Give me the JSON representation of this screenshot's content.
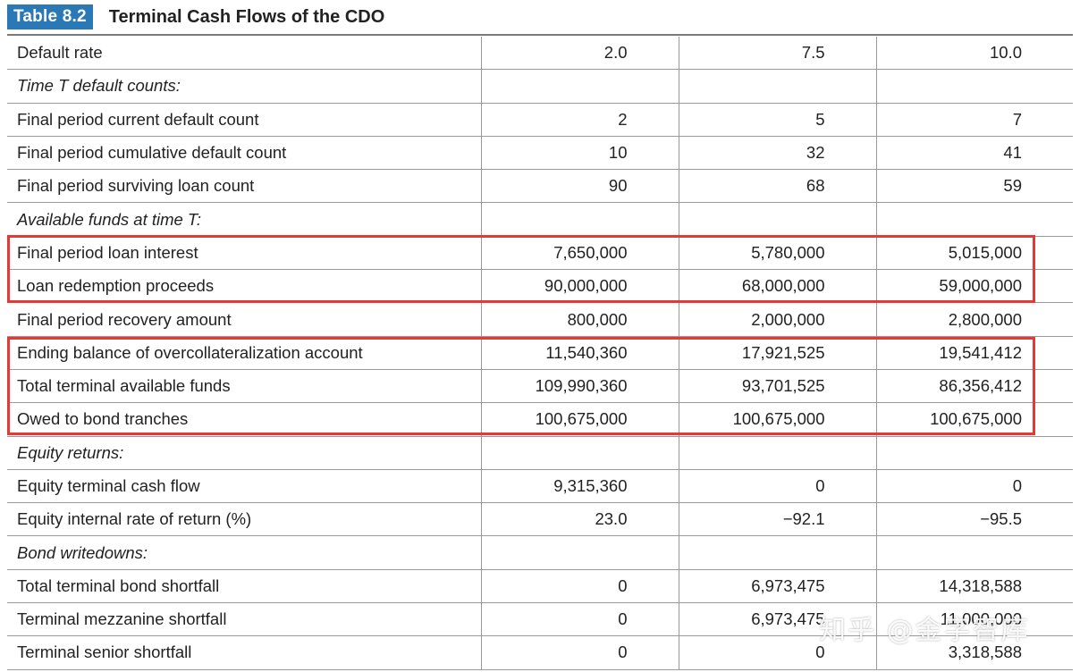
{
  "header": {
    "tag": "Table 8.2",
    "title": "Terminal Cash Flows of the CDO"
  },
  "rows": [
    {
      "label": "Default rate",
      "section": false,
      "values": [
        "2.0",
        "7.5",
        "10.0"
      ]
    },
    {
      "label": "Time T default counts:",
      "section": true,
      "values": [
        "",
        "",
        ""
      ]
    },
    {
      "label": "Final period current default count",
      "section": false,
      "values": [
        "2",
        "5",
        "7"
      ]
    },
    {
      "label": "Final period cumulative default count",
      "section": false,
      "values": [
        "10",
        "32",
        "41"
      ]
    },
    {
      "label": "Final period surviving loan count",
      "section": false,
      "values": [
        "90",
        "68",
        "59"
      ]
    },
    {
      "label": "Available funds at time T:",
      "section": true,
      "values": [
        "",
        "",
        ""
      ]
    },
    {
      "label": "Final period loan interest",
      "section": false,
      "values": [
        "7,650,000",
        "5,780,000",
        "5,015,000"
      ]
    },
    {
      "label": "Loan redemption proceeds",
      "section": false,
      "values": [
        "90,000,000",
        "68,000,000",
        "59,000,000"
      ]
    },
    {
      "label": "Final period recovery amount",
      "section": false,
      "values": [
        "800,000",
        "2,000,000",
        "2,800,000"
      ]
    },
    {
      "label": "Ending balance of overcollateralization account",
      "section": false,
      "values": [
        "11,540,360",
        "17,921,525",
        "19,541,412"
      ]
    },
    {
      "label": "Total terminal available funds",
      "section": false,
      "values": [
        "109,990,360",
        "93,701,525",
        "86,356,412"
      ]
    },
    {
      "label": "Owed to bond tranches",
      "section": false,
      "values": [
        "100,675,000",
        "100,675,000",
        "100,675,000"
      ]
    },
    {
      "label": "Equity returns:",
      "section": true,
      "values": [
        "",
        "",
        ""
      ]
    },
    {
      "label": "Equity terminal cash flow",
      "section": false,
      "values": [
        "9,315,360",
        "0",
        "0"
      ]
    },
    {
      "label": "Equity internal rate of return (%)",
      "section": false,
      "values": [
        "23.0",
        "−92.1",
        "−95.5"
      ]
    },
    {
      "label": "Bond writedowns:",
      "section": true,
      "values": [
        "",
        "",
        ""
      ]
    },
    {
      "label": "Total terminal bond shortfall",
      "section": false,
      "values": [
        "0",
        "6,973,475",
        "14,318,588"
      ]
    },
    {
      "label": "Terminal mezzanine shortfall",
      "section": false,
      "values": [
        "0",
        "6,973,475",
        "11,000,000"
      ]
    },
    {
      "label": "Terminal senior shortfall",
      "section": false,
      "values": [
        "0",
        "0",
        "3,318,588"
      ]
    }
  ],
  "highlight_color": "#e53935",
  "accent_color": "#2a78b5",
  "watermark": "知乎 @金字智库"
}
